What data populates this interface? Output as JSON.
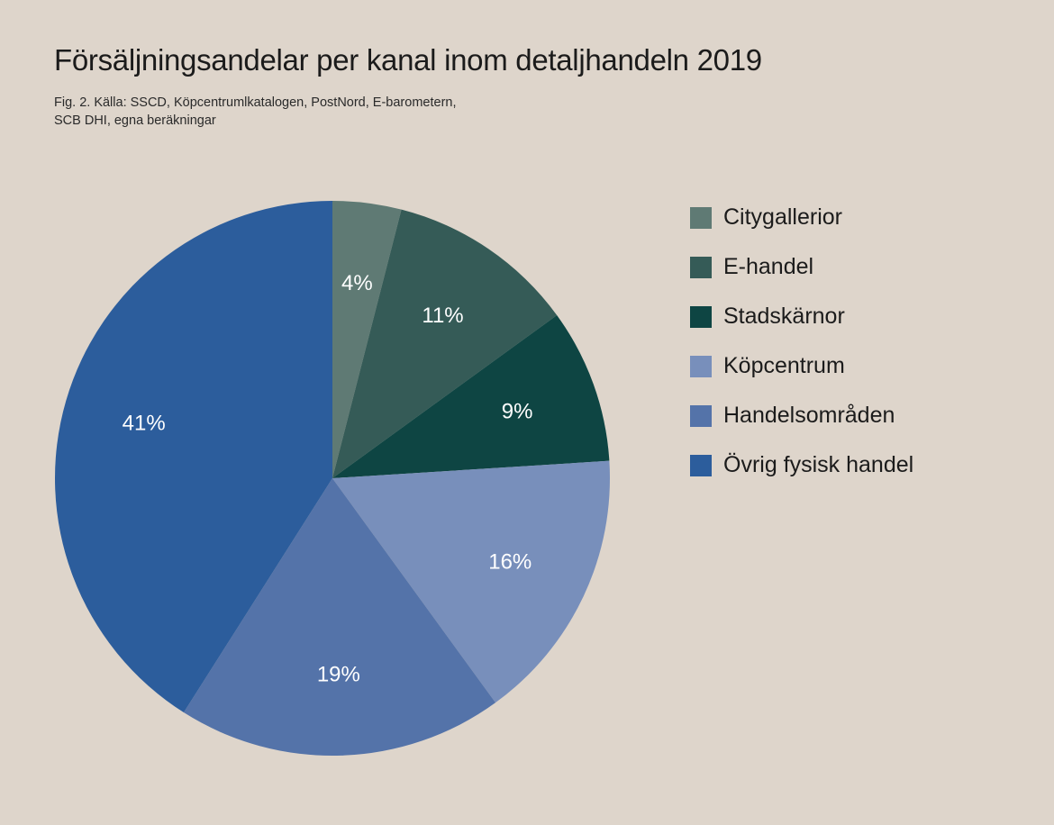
{
  "chart_data": {
    "type": "pie",
    "title": "Försäljningsandelar per kanal inom detaljhandeln 2019",
    "caption_lines": [
      "Fig. 2. Källa: SSCD, Köpcentrumlkatalogen, PostNord, E-barometern,",
      "SCB DHI, egna beräkningar"
    ],
    "legend_position": "right",
    "slices": [
      {
        "label": "Citygallerior",
        "value": 4,
        "display": "4%",
        "color": "#5f7a74"
      },
      {
        "label": "E-handel",
        "value": 11,
        "display": "11%",
        "color": "#355b57"
      },
      {
        "label": "Stadskärnor",
        "value": 9,
        "display": "9%",
        "color": "#0e4543"
      },
      {
        "label": "Köpcentrum",
        "value": 16,
        "display": "16%",
        "color": "#788fbb"
      },
      {
        "label": "Handelsområden",
        "value": 19,
        "display": "19%",
        "color": "#5473a9"
      },
      {
        "label": "Övrig fysisk handel",
        "value": 41,
        "display": "41%",
        "color": "#2c5d9c"
      }
    ]
  }
}
